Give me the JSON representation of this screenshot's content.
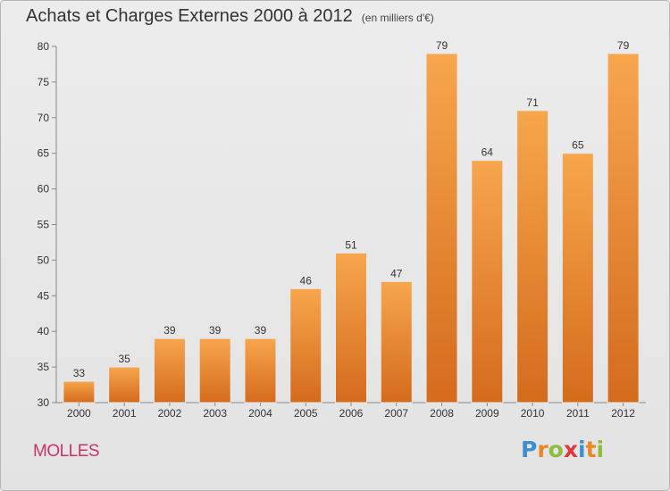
{
  "header": {
    "title": "Achats et Charges Externes 2000 à 2012",
    "subtitle": "(en milliers d'€)"
  },
  "footer": {
    "place": "MOLLES",
    "brand": "Proxiti",
    "brand_letters": [
      {
        "ch": "P",
        "color": "#3d8fd1"
      },
      {
        "ch": "r",
        "color": "#e8862a"
      },
      {
        "ch": "o",
        "color": "#8cbd3b"
      },
      {
        "ch": "x",
        "color": "#e0353f"
      },
      {
        "ch": "i",
        "color": "#3d8fd1"
      },
      {
        "ch": "t",
        "color": "#e8862a"
      },
      {
        "ch": "i",
        "color": "#8cbd3b"
      }
    ]
  },
  "chart_data": {
    "type": "bar",
    "title": "Achats et Charges Externes 2000 à 2012",
    "subtitle": "(en milliers d'€)",
    "categories": [
      "2000",
      "2001",
      "2002",
      "2003",
      "2004",
      "2005",
      "2006",
      "2007",
      "2008",
      "2009",
      "2010",
      "2011",
      "2012"
    ],
    "values": [
      33,
      35,
      39,
      39,
      39,
      46,
      51,
      47,
      79,
      64,
      71,
      65,
      79
    ],
    "ylim": [
      30,
      80
    ],
    "yticks": [
      30,
      35,
      40,
      45,
      50,
      55,
      60,
      65,
      70,
      75,
      80
    ],
    "grid": false,
    "bar_color_top": "#f7a64e",
    "bar_color_bottom": "#d46b1c"
  }
}
